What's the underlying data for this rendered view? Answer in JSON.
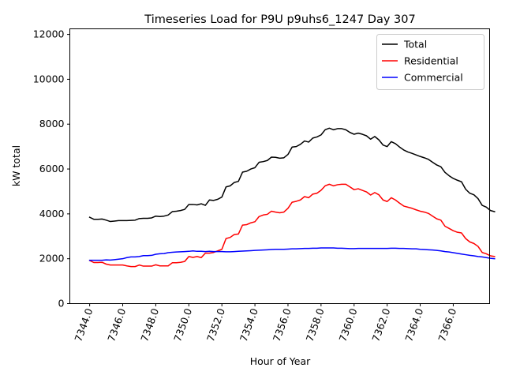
{
  "chart_data": {
    "type": "line",
    "title": "Timeseries Load for P9U p9uhs6_1247  Day 307",
    "xlabel": "Hour of Year",
    "ylabel": "kW total",
    "xlim": [
      7342.8,
      7368.2
    ],
    "ylim": [
      0,
      12250
    ],
    "xticks": [
      7344,
      7346,
      7348,
      7350,
      7352,
      7354,
      7356,
      7358,
      7360,
      7362,
      7364,
      7366
    ],
    "xtick_labels": [
      "7344.0",
      "7346.0",
      "7348.0",
      "7350.0",
      "7352.0",
      "7354.0",
      "7356.0",
      "7358.0",
      "7360.0",
      "7362.0",
      "7364.0",
      "7366.0"
    ],
    "yticks": [
      0,
      2000,
      4000,
      6000,
      8000,
      10000,
      12000
    ],
    "ytick_labels": [
      "0",
      "2000",
      "4000",
      "6000",
      "8000",
      "10000",
      "12000"
    ],
    "grid": false,
    "legend_position": "top-right",
    "x_start": 7344.0,
    "x_step": 0.25,
    "series": [
      {
        "name": "Total",
        "color": "#000000",
        "values": [
          3850,
          3760,
          3760,
          3770,
          3720,
          3660,
          3680,
          3700,
          3700,
          3700,
          3710,
          3720,
          3790,
          3800,
          3800,
          3820,
          3900,
          3880,
          3900,
          3950,
          4100,
          4120,
          4150,
          4200,
          4420,
          4420,
          4400,
          4450,
          4380,
          4620,
          4600,
          4650,
          4750,
          5200,
          5250,
          5400,
          5450,
          5860,
          5900,
          6000,
          6060,
          6300,
          6330,
          6380,
          6530,
          6520,
          6480,
          6500,
          6650,
          6980,
          7000,
          7100,
          7250,
          7200,
          7380,
          7430,
          7520,
          7750,
          7820,
          7750,
          7800,
          7800,
          7750,
          7630,
          7550,
          7600,
          7550,
          7480,
          7330,
          7450,
          7300,
          7070,
          7000,
          7220,
          7130,
          6980,
          6850,
          6760,
          6700,
          6630,
          6560,
          6500,
          6430,
          6300,
          6180,
          6100,
          5850,
          5700,
          5580,
          5500,
          5430,
          5100,
          4920,
          4850,
          4680,
          4380,
          4300,
          4150,
          4100
        ]
      },
      {
        "name": "Residential",
        "color": "#ff0000",
        "values": [
          1920,
          1830,
          1830,
          1840,
          1760,
          1720,
          1720,
          1720,
          1720,
          1680,
          1650,
          1650,
          1720,
          1670,
          1670,
          1670,
          1730,
          1680,
          1680,
          1680,
          1820,
          1820,
          1840,
          1880,
          2100,
          2060,
          2100,
          2050,
          2250,
          2250,
          2280,
          2350,
          2420,
          2900,
          2950,
          3080,
          3100,
          3500,
          3520,
          3600,
          3650,
          3880,
          3950,
          3980,
          4120,
          4080,
          4050,
          4080,
          4250,
          4520,
          4560,
          4620,
          4770,
          4720,
          4880,
          4920,
          5050,
          5250,
          5320,
          5250,
          5300,
          5320,
          5320,
          5200,
          5080,
          5120,
          5050,
          4980,
          4840,
          4950,
          4850,
          4620,
          4550,
          4720,
          4620,
          4480,
          4350,
          4300,
          4250,
          4180,
          4120,
          4080,
          4020,
          3900,
          3780,
          3720,
          3450,
          3350,
          3250,
          3180,
          3150,
          2900,
          2750,
          2680,
          2550,
          2280,
          2220,
          2130,
          2100
        ]
      },
      {
        "name": "Commercial",
        "color": "#0000ff",
        "values": [
          1930,
          1930,
          1930,
          1930,
          1950,
          1940,
          1960,
          1980,
          2000,
          2050,
          2080,
          2080,
          2100,
          2140,
          2140,
          2150,
          2200,
          2220,
          2230,
          2270,
          2290,
          2300,
          2310,
          2320,
          2330,
          2350,
          2330,
          2330,
          2320,
          2330,
          2320,
          2320,
          2320,
          2310,
          2310,
          2320,
          2330,
          2340,
          2350,
          2360,
          2370,
          2380,
          2390,
          2400,
          2410,
          2420,
          2420,
          2420,
          2430,
          2440,
          2440,
          2450,
          2460,
          2460,
          2470,
          2470,
          2480,
          2480,
          2480,
          2480,
          2470,
          2470,
          2460,
          2450,
          2450,
          2460,
          2460,
          2460,
          2460,
          2460,
          2460,
          2460,
          2460,
          2470,
          2470,
          2460,
          2460,
          2450,
          2440,
          2440,
          2420,
          2410,
          2400,
          2390,
          2370,
          2350,
          2320,
          2300,
          2270,
          2240,
          2210,
          2180,
          2150,
          2130,
          2100,
          2080,
          2050,
          2020,
          2000
        ]
      }
    ]
  }
}
